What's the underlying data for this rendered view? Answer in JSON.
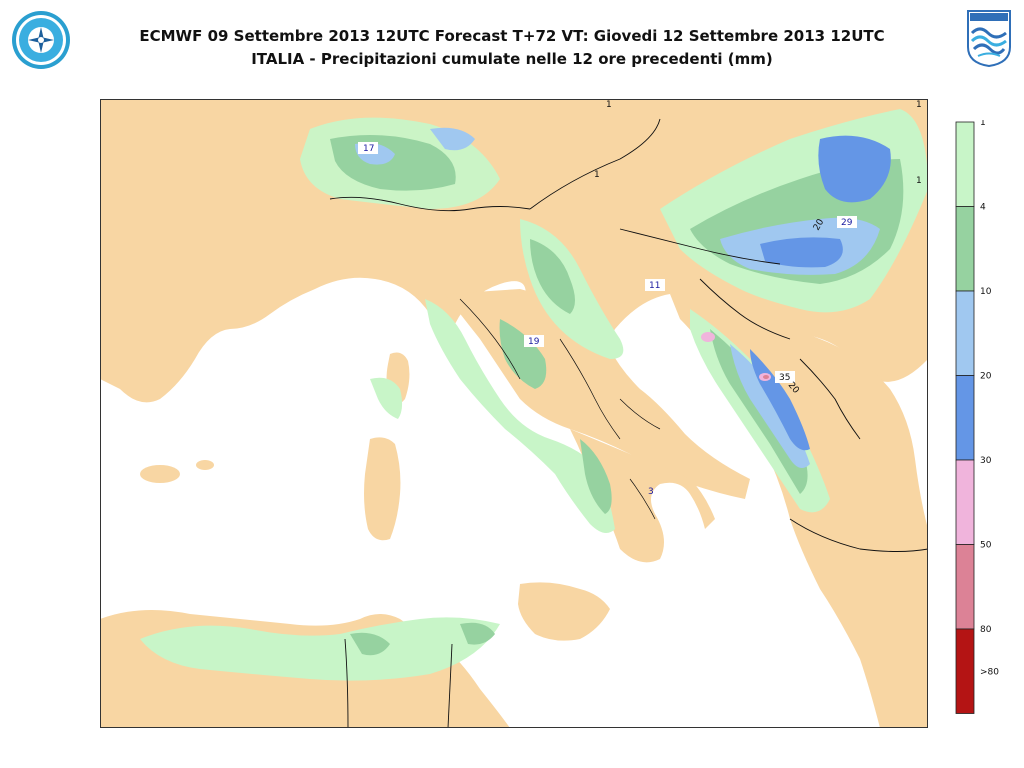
{
  "header": {
    "title_line1": "ECMWF 09 Settembre 2013 12UTC Forecast T+72 VT: Giovedi 12 Settembre 2013 12UTC",
    "title_line2": "ITALIA - Precipitazioni cumulate nelle 12 ore precedenti (mm)"
  },
  "logos": {
    "left_icon": "meteo-service-seal-icon",
    "right_icon": "cnmca-logo-icon"
  },
  "colors": {
    "land": "#f8d6a3",
    "sea": "#ffffff",
    "border": "#111111",
    "precip_1_4": "#c8f5c8",
    "precip_4_10": "#96d2a0",
    "precip_10_20": "#a0c8f0",
    "precip_20_30": "#6496e6",
    "precip_30_50": "#f0b4dc",
    "precip_50_80": "#dc8296",
    "precip_80_plus": "#b41414"
  },
  "legend": {
    "items": [
      {
        "label": "1",
        "color": "#c8f5c8"
      },
      {
        "label": "4",
        "color": "#96d2a0"
      },
      {
        "label": "10",
        "color": "#a0c8f0"
      },
      {
        "label": "20",
        "color": "#6496e6"
      },
      {
        "label": "30",
        "color": "#f0b4dc"
      },
      {
        "label": "50",
        "color": "#dc8296"
      },
      {
        "label": "80",
        "color": "#b41414"
      }
    ],
    "last_label": ">80"
  },
  "map_labels": [
    {
      "text": "17",
      "style": "box"
    },
    {
      "text": "29",
      "style": "box"
    },
    {
      "text": "11",
      "style": "box"
    },
    {
      "text": "19",
      "style": "box"
    },
    {
      "text": "35",
      "style": "box"
    },
    {
      "text": "3",
      "style": "plain"
    },
    {
      "text": "20",
      "style": "plain"
    },
    {
      "text": "20",
      "style": "plain"
    },
    {
      "text": "1",
      "style": "plain"
    },
    {
      "text": "1",
      "style": "plain"
    },
    {
      "text": "1",
      "style": "plain"
    },
    {
      "text": "1",
      "style": "plain"
    }
  ]
}
